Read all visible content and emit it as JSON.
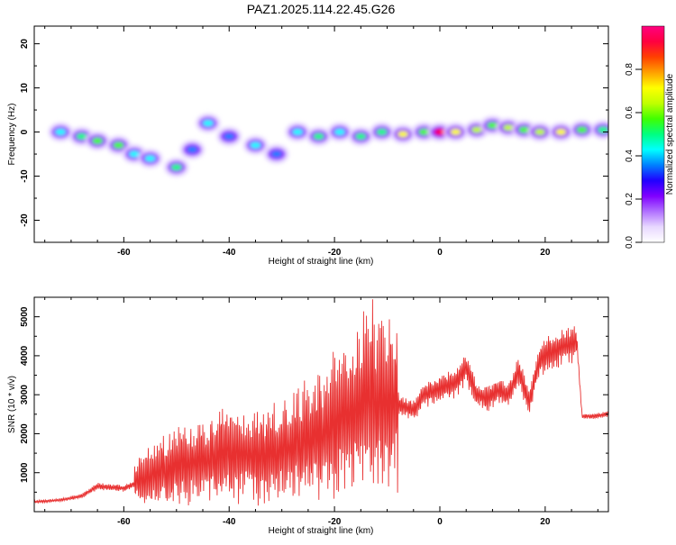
{
  "title": "PAZ1.2025.114.22.45.G26",
  "chart_data": [
    {
      "type": "heatmap",
      "name": "spectrogram",
      "xlabel": "Height of straight line (km)",
      "ylabel": "Frequency (Hz)",
      "xlim": [
        -77,
        32
      ],
      "ylim": [
        -25,
        24
      ],
      "x_ticks": [
        -60,
        -40,
        -20,
        0,
        20
      ],
      "y_ticks": [
        -20,
        -10,
        0,
        10,
        20
      ],
      "colorbar": {
        "label": "Normalized spectral amplitude",
        "range": [
          0,
          1
        ],
        "ticks": [
          0.0,
          0.2,
          0.4,
          0.6,
          0.8
        ],
        "colors": [
          "#ffffff",
          "#e8d8ff",
          "#b070ff",
          "#8000ff",
          "#2000ff",
          "#0080ff",
          "#00ffff",
          "#00ff80",
          "#40ff00",
          "#c0ff00",
          "#ffff00",
          "#ffa000",
          "#ff4000",
          "#ff0040",
          "#ff0080"
        ]
      },
      "blobs": [
        {
          "x": -72,
          "y": 0,
          "v": 0.45
        },
        {
          "x": -68,
          "y": -1,
          "v": 0.5
        },
        {
          "x": -65,
          "y": -2,
          "v": 0.6
        },
        {
          "x": -61,
          "y": -3,
          "v": 0.55
        },
        {
          "x": -58,
          "y": -5,
          "v": 0.45
        },
        {
          "x": -55,
          "y": -6,
          "v": 0.4
        },
        {
          "x": -50,
          "y": -8,
          "v": 0.5
        },
        {
          "x": -47,
          "y": -4,
          "v": 0.35
        },
        {
          "x": -44,
          "y": 2,
          "v": 0.45
        },
        {
          "x": -40,
          "y": -1,
          "v": 0.35
        },
        {
          "x": -35,
          "y": -3,
          "v": 0.4
        },
        {
          "x": -31,
          "y": -5,
          "v": 0.35
        },
        {
          "x": -27,
          "y": 0,
          "v": 0.4
        },
        {
          "x": -23,
          "y": -1,
          "v": 0.5
        },
        {
          "x": -19,
          "y": 0,
          "v": 0.45
        },
        {
          "x": -15,
          "y": -1,
          "v": 0.5
        },
        {
          "x": -11,
          "y": 0,
          "v": 0.5
        },
        {
          "x": -7,
          "y": -0.5,
          "v": 0.7
        },
        {
          "x": -3,
          "y": 0,
          "v": 0.6
        },
        {
          "x": 0,
          "y": 0,
          "v": 0.95
        },
        {
          "x": 3,
          "y": 0,
          "v": 0.7
        },
        {
          "x": 7,
          "y": 0.5,
          "v": 0.65
        },
        {
          "x": 10,
          "y": 1.5,
          "v": 0.6
        },
        {
          "x": 13,
          "y": 1,
          "v": 0.65
        },
        {
          "x": 16,
          "y": 0.5,
          "v": 0.6
        },
        {
          "x": 19,
          "y": 0,
          "v": 0.65
        },
        {
          "x": 23,
          "y": 0,
          "v": 0.7
        },
        {
          "x": 27,
          "y": 0.5,
          "v": 0.55
        },
        {
          "x": 31,
          "y": 0.5,
          "v": 0.5
        }
      ]
    },
    {
      "type": "line",
      "name": "snr",
      "xlabel": "Height of straight line (km)",
      "ylabel": "SNR (10 * v/v)",
      "xlim": [
        -77,
        32
      ],
      "ylim": [
        0,
        5500
      ],
      "x_ticks": [
        -60,
        -40,
        -20,
        0,
        20
      ],
      "y_ticks": [
        1000,
        2000,
        3000,
        4000,
        5000
      ],
      "color": "#e83030",
      "series": [
        {
          "x": [
            -77,
            -72,
            -68,
            -65,
            -60,
            -55,
            -50,
            -45,
            -40,
            -35,
            -30,
            -26,
            -22,
            -18,
            -15,
            -13,
            -12,
            -11,
            -9,
            -7,
            -5,
            -3,
            -1,
            1,
            3,
            5,
            7,
            9,
            11,
            13,
            15,
            17,
            19,
            21,
            23,
            25,
            26,
            27,
            29,
            32
          ],
          "y": [
            250,
            300,
            400,
            650,
            600,
            900,
            1200,
            1300,
            1500,
            1400,
            1550,
            1800,
            2000,
            2400,
            2600,
            3200,
            2500,
            2900,
            2800,
            2700,
            2600,
            3000,
            3100,
            3200,
            3300,
            3700,
            3000,
            2900,
            3100,
            3000,
            3600,
            2800,
            3900,
            4100,
            4200,
            4300,
            4400,
            2450,
            2450,
            2500
          ]
        }
      ]
    }
  ]
}
